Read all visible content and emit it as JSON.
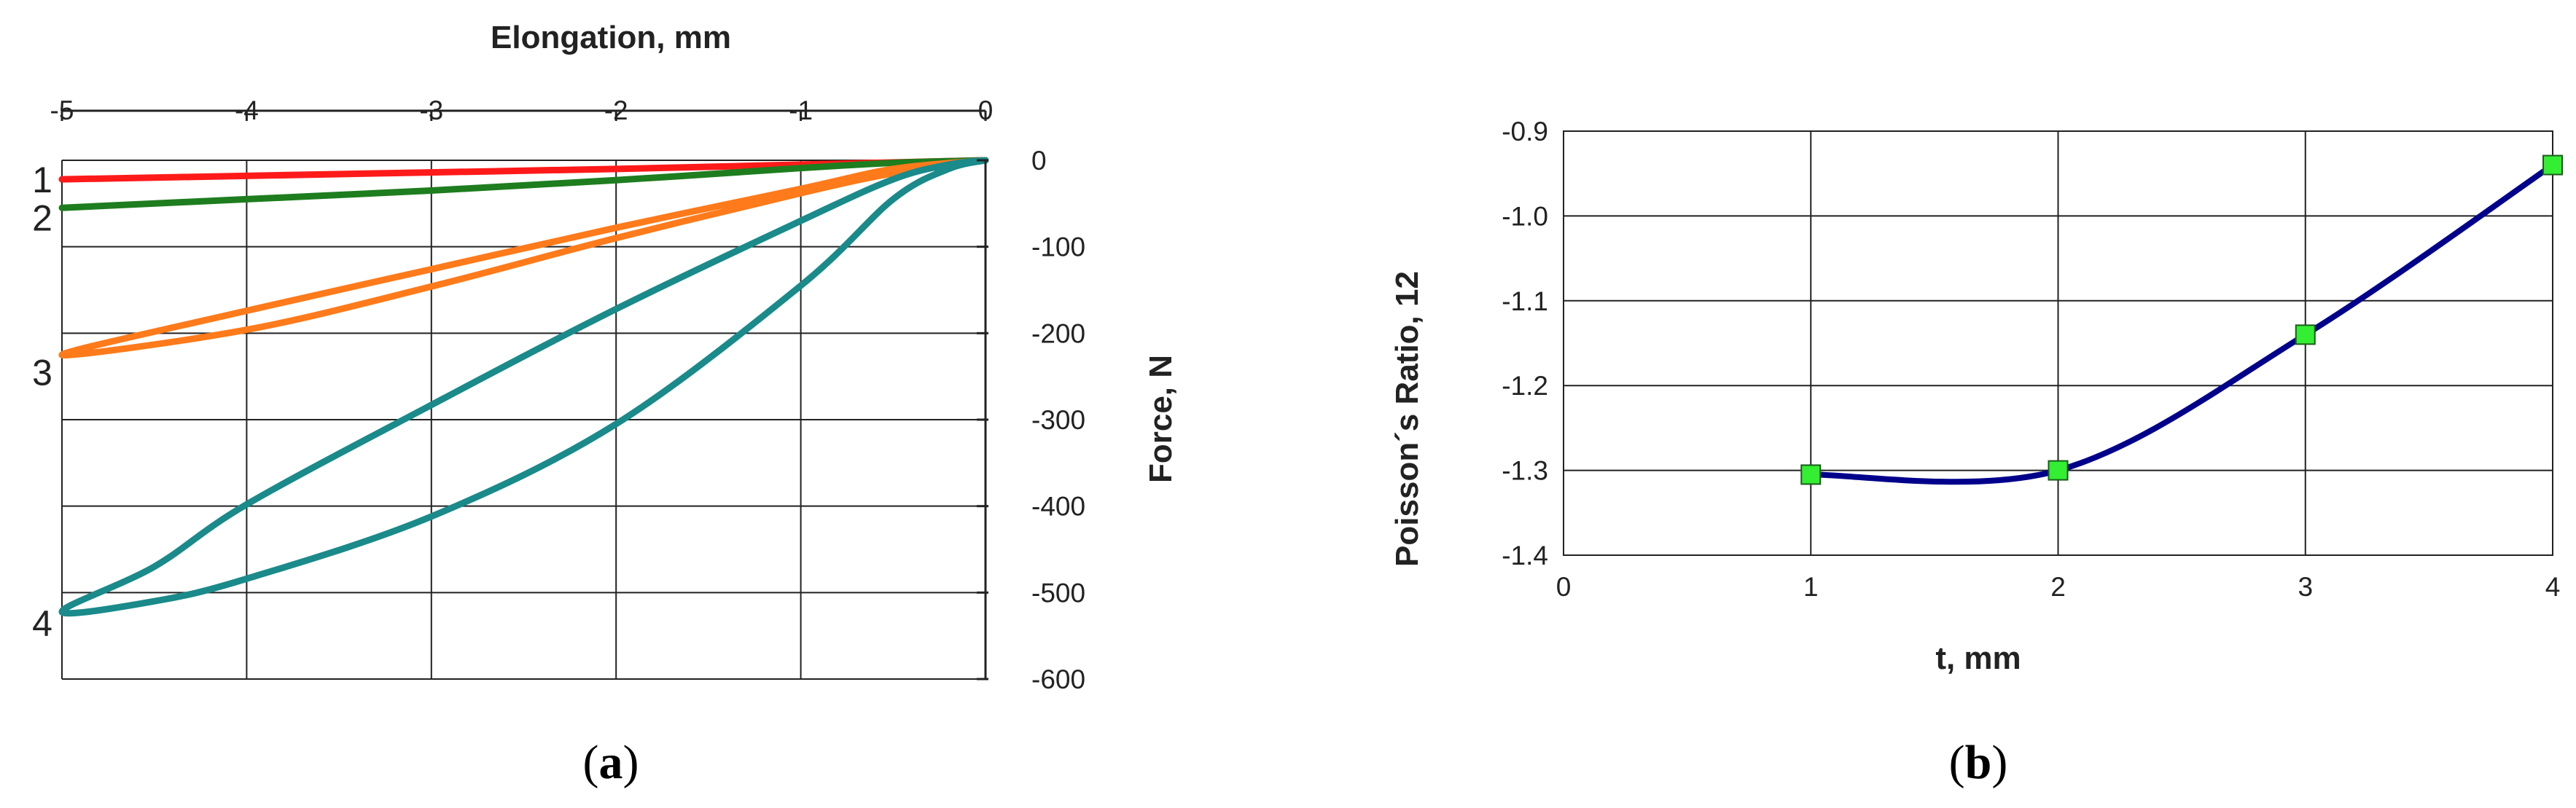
{
  "chart_data": [
    {
      "type": "line",
      "panel_label": {
        "open": "(",
        "letter": "a",
        "close": ")"
      },
      "xlabel": "Elongation, mm",
      "ylabel": "Force, N",
      "xlim": [
        -5,
        0
      ],
      "ylim": [
        -600,
        0
      ],
      "x_ticks": [
        -5,
        -4,
        -3,
        -2,
        -1,
        0
      ],
      "y_ticks": [
        0,
        -100,
        -200,
        -300,
        -400,
        -500,
        -600
      ],
      "grid": true,
      "x_axis_position": "top",
      "y_axis_position": "right",
      "curve_labels": [
        {
          "text": "1",
          "y": -22
        },
        {
          "text": "2",
          "y": -66
        },
        {
          "text": "3",
          "y": -245
        },
        {
          "text": "4",
          "y": -535
        }
      ],
      "series": [
        {
          "color": "#ff1a1a",
          "closed": false,
          "points": [
            [
              -5,
              -22
            ],
            [
              -4,
              -18
            ],
            [
              -3,
              -14
            ],
            [
              -2,
              -10
            ],
            [
              -1,
              -5
            ],
            [
              0,
              0
            ]
          ]
        },
        {
          "color": "#1e7d1e",
          "closed": false,
          "points": [
            [
              -5,
              -55
            ],
            [
              -4,
              -45
            ],
            [
              -3,
              -35
            ],
            [
              -2,
              -23
            ],
            [
              -1,
              -9
            ],
            [
              -0.5,
              -3
            ],
            [
              0,
              0
            ]
          ]
        },
        {
          "color": "#ff7a1a",
          "closed": true,
          "points": [
            [
              0,
              0
            ],
            [
              -0.5,
              -15
            ],
            [
              -1,
              -38
            ],
            [
              -2,
              -90
            ],
            [
              -3,
              -146
            ],
            [
              -4,
              -196
            ],
            [
              -5,
              -225
            ],
            [
              -4,
              -174
            ],
            [
              -3,
              -126
            ],
            [
              -2,
              -78
            ],
            [
              -1,
              -33
            ],
            [
              -0.5,
              -10
            ],
            [
              0,
              0
            ]
          ]
        },
        {
          "color": "#1a8a8a",
          "closed": true,
          "points": [
            [
              0,
              0
            ],
            [
              -0.2,
              -10
            ],
            [
              -0.5,
              -45
            ],
            [
              -1,
              -145
            ],
            [
              -2,
              -305
            ],
            [
              -3,
              -412
            ],
            [
              -4,
              -484
            ],
            [
              -4.5,
              -510
            ],
            [
              -5,
              -522
            ],
            [
              -4.5,
              -470
            ],
            [
              -4,
              -398
            ],
            [
              -3,
              -283
            ],
            [
              -2,
              -172
            ],
            [
              -1,
              -70
            ],
            [
              -0.5,
              -22
            ],
            [
              -0.2,
              -5
            ],
            [
              0,
              0
            ]
          ]
        }
      ]
    },
    {
      "type": "line",
      "panel_label": {
        "open": "(",
        "letter": "b",
        "close": ")"
      },
      "xlabel": "t, mm",
      "ylabel": "Poisson´s Ratio, 12",
      "xlim": [
        0,
        4
      ],
      "ylim": [
        -1.4,
        -0.9
      ],
      "x_ticks": [
        0,
        1,
        2,
        3,
        4
      ],
      "y_ticks": [
        "-0.9",
        "-1.0",
        "-1.1",
        "-1.2",
        "-1.3",
        "-1.4"
      ],
      "y_inverted": true,
      "grid": true,
      "line_color": "#00008b",
      "marker_color": "#33ee33",
      "marker": "square",
      "x": [
        1,
        2,
        3,
        4
      ],
      "y": [
        -1.305,
        -1.3,
        -1.14,
        -0.94
      ]
    }
  ]
}
